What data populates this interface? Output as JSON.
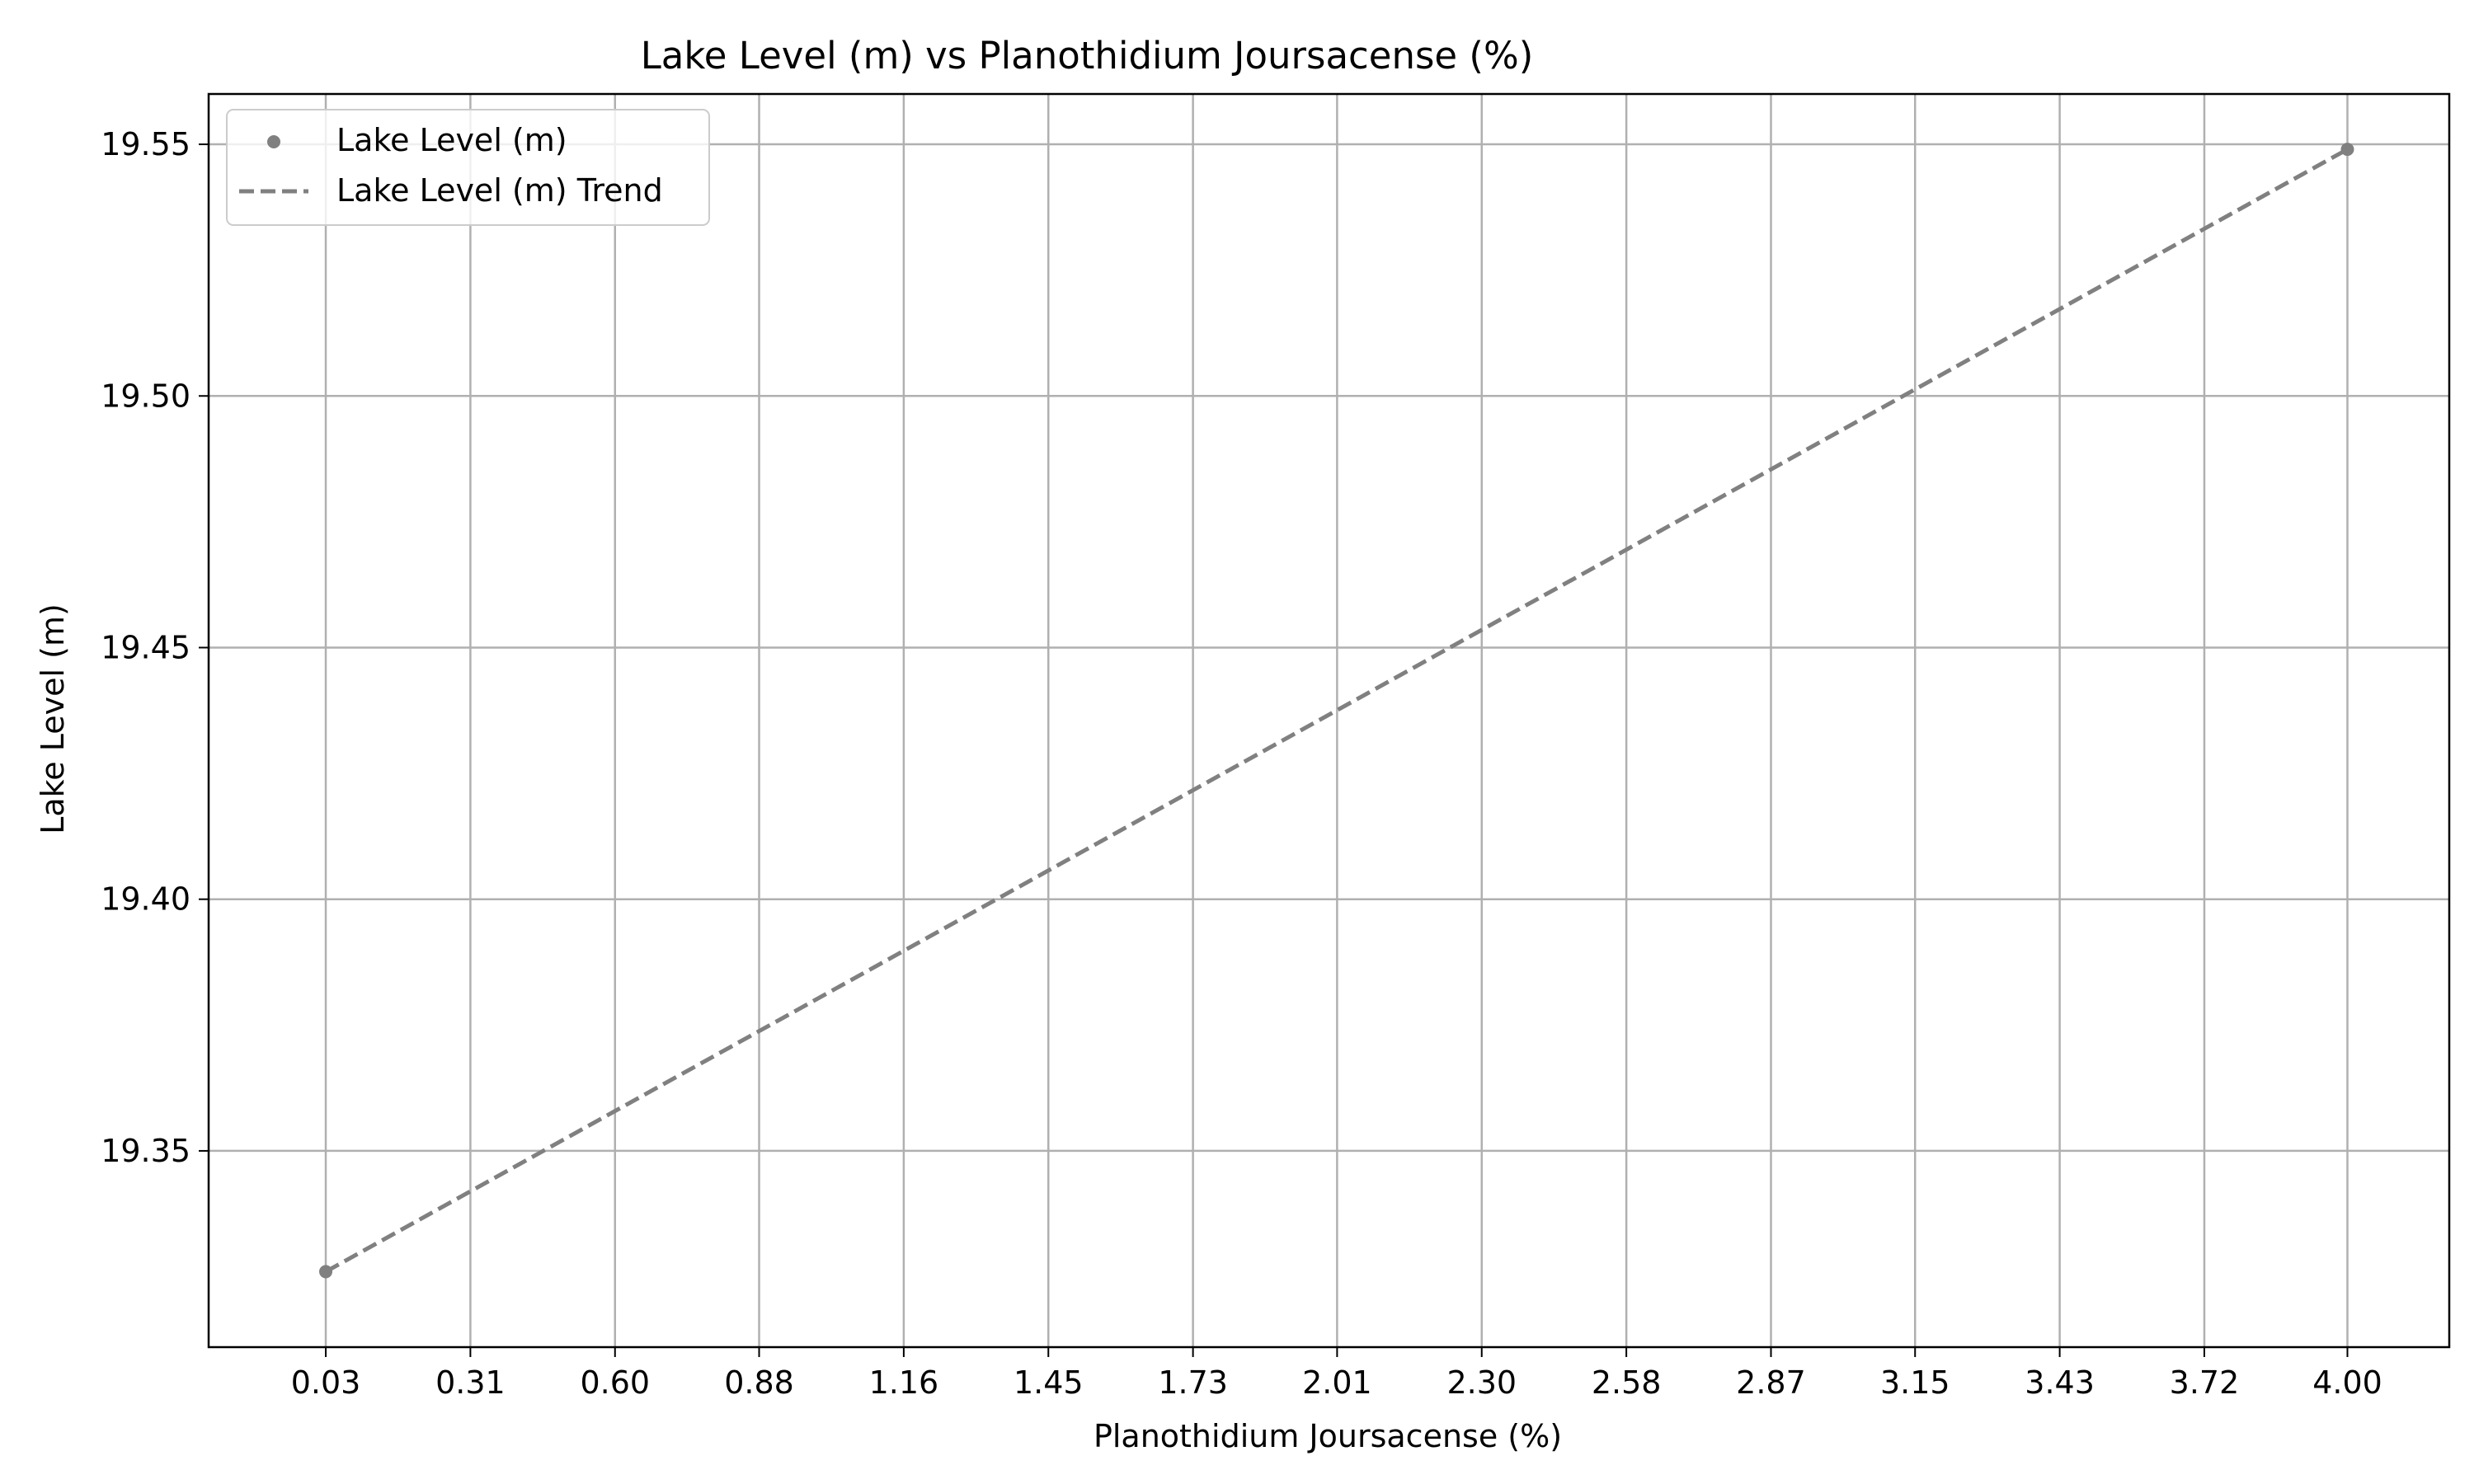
{
  "chart_data": {
    "type": "scatter",
    "title": "Lake Level (m) vs Planothidium Joursacense (%)",
    "xlabel": "Planothidium Joursacense (%)",
    "ylabel": "Lake Level (m)",
    "xlim": [
      -0.2,
      4.2
    ],
    "ylim": [
      19.311,
      19.56
    ],
    "x_ticks": [
      "0.03",
      "0.31",
      "0.60",
      "0.88",
      "1.16",
      "1.45",
      "1.73",
      "2.01",
      "2.30",
      "2.58",
      "2.87",
      "3.15",
      "3.43",
      "3.72",
      "4.00"
    ],
    "x_tick_values": [
      0.03,
      0.314,
      0.598,
      0.881,
      1.165,
      1.449,
      1.733,
      2.016,
      2.3,
      2.584,
      2.868,
      3.151,
      3.435,
      3.719,
      4.0
    ],
    "y_ticks": [
      "19.35",
      "19.40",
      "19.45",
      "19.50",
      "19.55"
    ],
    "y_tick_values": [
      19.35,
      19.4,
      19.45,
      19.5,
      19.55
    ],
    "grid": true,
    "legend_position": "top-left",
    "series": [
      {
        "name": "Lake Level (m)",
        "kind": "scatter",
        "color": "#808080",
        "points": [
          {
            "x": 0.03,
            "y": 19.326
          },
          {
            "x": 4.0,
            "y": 19.549
          }
        ]
      },
      {
        "name": "Lake Level (m) Trend",
        "kind": "line",
        "style": "dashed",
        "color": "#808080",
        "points": [
          {
            "x": 0.03,
            "y": 19.326
          },
          {
            "x": 4.0,
            "y": 19.549
          }
        ]
      }
    ]
  }
}
